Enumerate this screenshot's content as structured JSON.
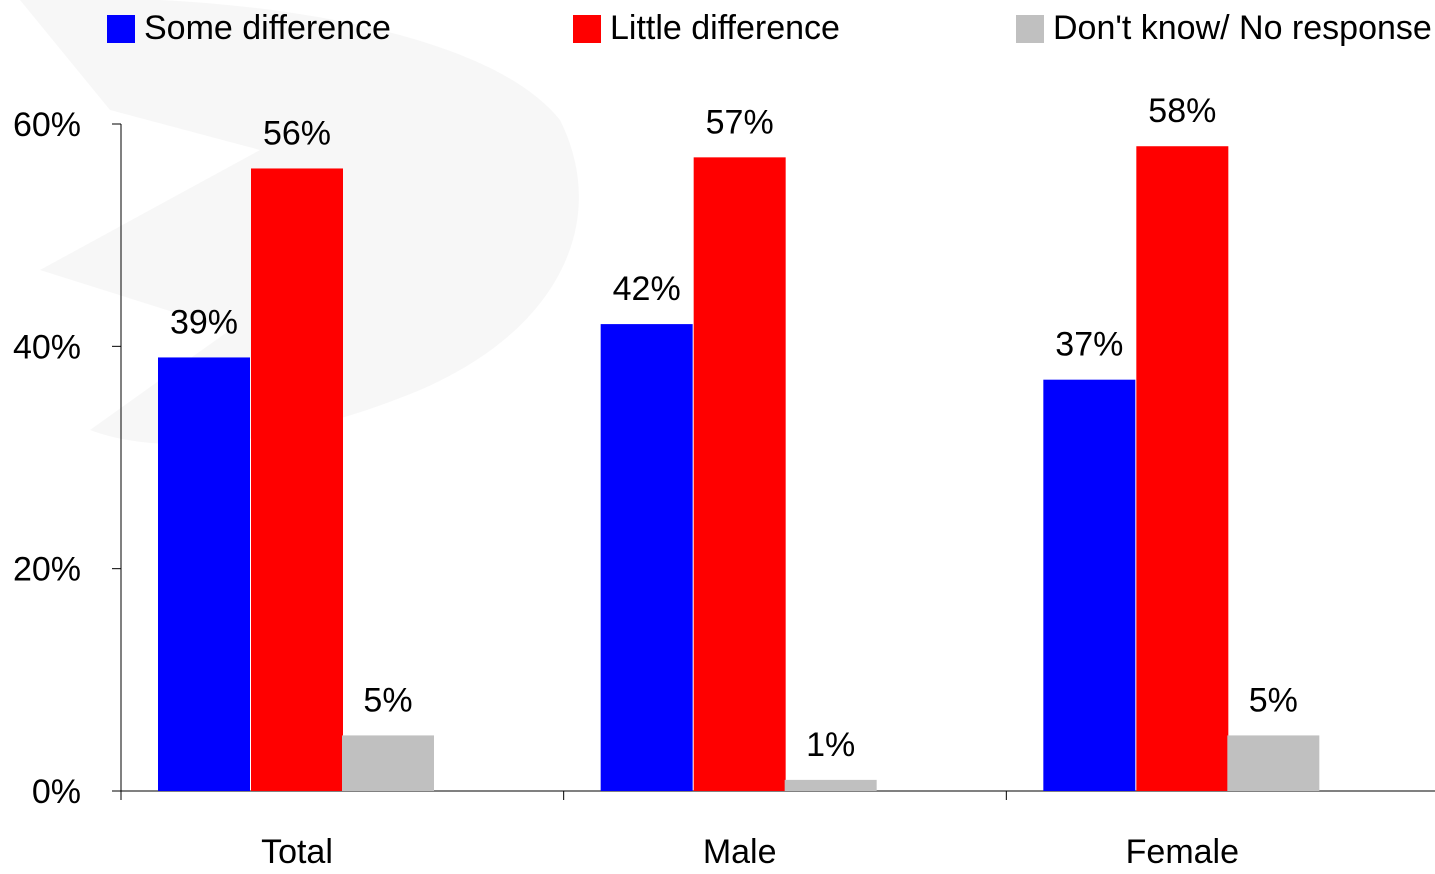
{
  "chart_data": {
    "type": "bar",
    "categories": [
      "Total",
      "Male",
      "Female"
    ],
    "series": [
      {
        "name": "Some difference",
        "color": "#0000ff",
        "values": [
          39,
          42,
          37
        ],
        "labels": [
          "39%",
          "42%",
          "37%"
        ]
      },
      {
        "name": "Little difference",
        "color": "#ff0000",
        "values": [
          56,
          57,
          58
        ],
        "labels": [
          "56%",
          "57%",
          "58%"
        ]
      },
      {
        "name": "Don't know/ No response",
        "color": "#c0c0c0",
        "values": [
          5,
          1,
          5
        ],
        "labels": [
          "5%",
          "1%",
          "5%"
        ]
      }
    ],
    "ylim": [
      0,
      60
    ],
    "yticks": [
      {
        "value": 0,
        "label": "0%"
      },
      {
        "value": 20,
        "label": "20%"
      },
      {
        "value": 40,
        "label": "40%"
      },
      {
        "value": 60,
        "label": "60%"
      }
    ],
    "grid": false,
    "legend_position": "top",
    "title": "",
    "xlabel": "",
    "ylabel": ""
  }
}
